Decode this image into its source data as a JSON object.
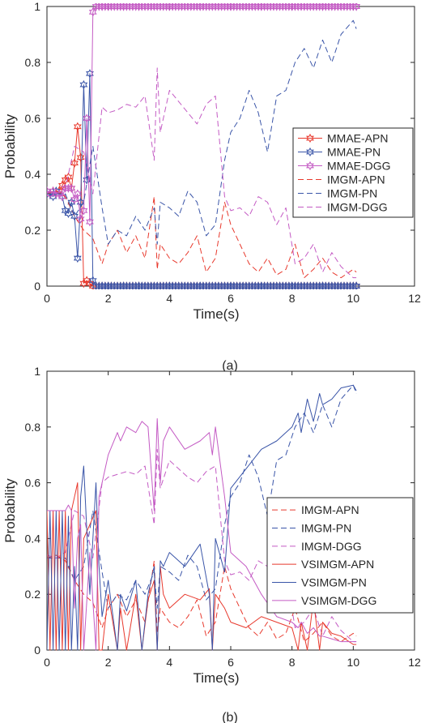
{
  "chart_data": [
    {
      "type": "line",
      "caption": "(a)",
      "xlabel": "Time(s)",
      "ylabel": "Probability",
      "xlim": [
        0,
        12
      ],
      "ylim": [
        0,
        1
      ],
      "xticks": [
        0,
        2,
        4,
        6,
        8,
        10,
        12
      ],
      "yticks": [
        0,
        0.2,
        0.4,
        0.6,
        0.8,
        1
      ],
      "grid": false,
      "legend_position": "right",
      "series": [
        {
          "name": "MMAE-APN",
          "color": "#e8392d",
          "style": "solid",
          "marker": "hexagram",
          "x": [
            0,
            0.1,
            0.2,
            0.3,
            0.4,
            0.5,
            0.6,
            0.7,
            0.8,
            0.9,
            1.0,
            1.1,
            1.2,
            1.3,
            1.4,
            1.5,
            1.6,
            1.8,
            2.0,
            2.5,
            3,
            4,
            5,
            6,
            7,
            8,
            9,
            10.1
          ],
          "y": [
            0.33,
            0.33,
            0.34,
            0.33,
            0.34,
            0.36,
            0.38,
            0.39,
            0.35,
            0.44,
            0.57,
            0.46,
            0.01,
            0.02,
            0.01,
            0.0,
            0.0,
            0,
            0,
            0,
            0,
            0,
            0,
            0,
            0,
            0,
            0,
            0
          ]
        },
        {
          "name": "MMAE-PN",
          "color": "#3a55a8",
          "style": "solid",
          "marker": "hexagram",
          "x": [
            0,
            0.1,
            0.2,
            0.3,
            0.4,
            0.5,
            0.6,
            0.7,
            0.8,
            0.9,
            1.0,
            1.1,
            1.2,
            1.3,
            1.4,
            1.5,
            1.6,
            1.8,
            2.0,
            2.5,
            3,
            4,
            5,
            6,
            7,
            8,
            9,
            10.1
          ],
          "y": [
            0.33,
            0.33,
            0.32,
            0.34,
            0.33,
            0.32,
            0.27,
            0.26,
            0.3,
            0.25,
            0.1,
            0.3,
            0.72,
            0.38,
            0.76,
            0.02,
            0.0,
            0,
            0,
            0,
            0,
            0,
            0,
            0,
            0,
            0,
            0,
            0
          ]
        },
        {
          "name": "MMAE-DGG",
          "color": "#c45bc4",
          "style": "solid",
          "marker": "hexagram",
          "x": [
            0,
            0.1,
            0.2,
            0.3,
            0.4,
            0.5,
            0.6,
            0.7,
            0.8,
            0.9,
            1.0,
            1.1,
            1.2,
            1.3,
            1.4,
            1.5,
            1.6,
            1.8,
            2.0,
            2.5,
            3,
            4,
            5,
            6,
            7,
            8,
            9,
            10.1
          ],
          "y": [
            0.34,
            0.33,
            0.34,
            0.33,
            0.33,
            0.32,
            0.35,
            0.35,
            0.35,
            0.31,
            0.33,
            0.24,
            0.27,
            0.6,
            0.23,
            0.98,
            1.0,
            1,
            1,
            1,
            1,
            1,
            1,
            1,
            1,
            1,
            1,
            1
          ]
        },
        {
          "name": "IMGM-APN",
          "color": "#e8392d",
          "style": "dashed",
          "marker": "none",
          "x": [
            0,
            0.3,
            0.6,
            0.9,
            1.2,
            1.5,
            1.8,
            2.0,
            2.3,
            2.6,
            2.9,
            3.2,
            3.5,
            3.6,
            3.7,
            4.0,
            4.3,
            4.6,
            4.9,
            5.2,
            5.5,
            5.8,
            6.0,
            6.3,
            6.6,
            6.9,
            7.2,
            7.5,
            7.8,
            8.1,
            8.4,
            8.7,
            9.0,
            9.3,
            9.6,
            10.0,
            10.1
          ],
          "y": [
            0.33,
            0.34,
            0.32,
            0.25,
            0.2,
            0.17,
            0.08,
            0.15,
            0.2,
            0.12,
            0.18,
            0.1,
            0.32,
            0.06,
            0.15,
            0.1,
            0.08,
            0.12,
            0.18,
            0.05,
            0.1,
            0.3,
            0.22,
            0.15,
            0.08,
            0.05,
            0.1,
            0.04,
            0.06,
            0.15,
            0.03,
            0.06,
            0.1,
            0.05,
            0.03,
            0.06,
            0.05
          ]
        },
        {
          "name": "IMGM-PN",
          "color": "#3a55a8",
          "style": "dashed",
          "marker": "none",
          "x": [
            0,
            0.3,
            0.6,
            0.9,
            1.2,
            1.5,
            1.8,
            2.0,
            2.3,
            2.6,
            2.9,
            3.2,
            3.5,
            3.6,
            3.7,
            4.0,
            4.3,
            4.6,
            4.9,
            5.2,
            5.5,
            5.8,
            6.0,
            6.3,
            6.6,
            6.9,
            7.2,
            7.5,
            7.8,
            8.1,
            8.4,
            8.7,
            9.0,
            9.3,
            9.6,
            10.0,
            10.1
          ],
          "y": [
            0.33,
            0.33,
            0.33,
            0.25,
            0.3,
            0.5,
            0.28,
            0.15,
            0.2,
            0.18,
            0.25,
            0.2,
            0.28,
            0.15,
            0.3,
            0.28,
            0.25,
            0.34,
            0.3,
            0.18,
            0.22,
            0.45,
            0.55,
            0.6,
            0.7,
            0.62,
            0.48,
            0.68,
            0.7,
            0.8,
            0.85,
            0.78,
            0.88,
            0.8,
            0.9,
            0.95,
            0.92
          ]
        },
        {
          "name": "IMGM-DGG",
          "color": "#c45bc4",
          "style": "dashed",
          "marker": "none",
          "x": [
            0,
            0.3,
            0.6,
            0.9,
            1.2,
            1.5,
            1.8,
            2.0,
            2.3,
            2.6,
            2.9,
            3.2,
            3.5,
            3.6,
            3.7,
            4.0,
            4.3,
            4.6,
            4.9,
            5.2,
            5.5,
            5.8,
            6.0,
            6.3,
            6.6,
            6.9,
            7.2,
            7.5,
            7.8,
            8.1,
            8.4,
            8.7,
            9.0,
            9.3,
            9.6,
            10.0,
            10.1
          ],
          "y": [
            0.34,
            0.33,
            0.35,
            0.5,
            0.48,
            0.33,
            0.64,
            0.62,
            0.63,
            0.65,
            0.64,
            0.68,
            0.45,
            0.78,
            0.55,
            0.7,
            0.66,
            0.62,
            0.58,
            0.65,
            0.68,
            0.32,
            0.27,
            0.28,
            0.25,
            0.32,
            0.3,
            0.22,
            0.28,
            0.08,
            0.1,
            0.15,
            0.05,
            0.12,
            0.07,
            0.03,
            0.03
          ]
        }
      ]
    },
    {
      "type": "line",
      "caption": "(b)",
      "xlabel": "Time(s)",
      "ylabel": "Probability",
      "xlim": [
        0,
        12
      ],
      "ylim": [
        0,
        1
      ],
      "xticks": [
        0,
        2,
        4,
        6,
        8,
        10,
        12
      ],
      "yticks": [
        0,
        0.2,
        0.4,
        0.6,
        0.8,
        1
      ],
      "grid": false,
      "legend_position": "right",
      "series": [
        {
          "name": "IMGM-APN",
          "color": "#e8392d",
          "style": "dashed",
          "x": [
            0,
            0.3,
            0.6,
            0.9,
            1.2,
            1.5,
            1.8,
            2.0,
            2.3,
            2.6,
            2.9,
            3.2,
            3.5,
            3.6,
            3.7,
            4.0,
            4.3,
            4.6,
            4.9,
            5.2,
            5.5,
            5.8,
            6.0,
            6.3,
            6.6,
            6.9,
            7.2,
            7.5,
            7.8,
            8.1,
            8.4,
            8.7,
            9.0,
            9.3,
            9.6,
            10.0,
            10.1
          ],
          "y": [
            0.33,
            0.34,
            0.32,
            0.25,
            0.2,
            0.17,
            0.08,
            0.15,
            0.2,
            0.12,
            0.18,
            0.1,
            0.32,
            0.06,
            0.15,
            0.1,
            0.08,
            0.12,
            0.18,
            0.05,
            0.1,
            0.3,
            0.22,
            0.15,
            0.08,
            0.05,
            0.1,
            0.04,
            0.06,
            0.15,
            0.03,
            0.06,
            0.1,
            0.05,
            0.03,
            0.06,
            0.05
          ]
        },
        {
          "name": "IMGM-PN",
          "color": "#3a55a8",
          "style": "dashed",
          "x": [
            0,
            0.3,
            0.6,
            0.9,
            1.2,
            1.5,
            1.8,
            2.0,
            2.3,
            2.6,
            2.9,
            3.2,
            3.5,
            3.6,
            3.7,
            4.0,
            4.3,
            4.6,
            4.9,
            5.2,
            5.5,
            5.8,
            6.0,
            6.3,
            6.6,
            6.9,
            7.2,
            7.5,
            7.8,
            8.1,
            8.4,
            8.7,
            9.0,
            9.3,
            9.6,
            10.0,
            10.1
          ],
          "y": [
            0.33,
            0.33,
            0.33,
            0.25,
            0.3,
            0.5,
            0.28,
            0.15,
            0.2,
            0.18,
            0.25,
            0.2,
            0.28,
            0.15,
            0.3,
            0.28,
            0.25,
            0.34,
            0.3,
            0.18,
            0.22,
            0.45,
            0.55,
            0.6,
            0.7,
            0.62,
            0.48,
            0.68,
            0.7,
            0.8,
            0.85,
            0.78,
            0.88,
            0.8,
            0.9,
            0.95,
            0.92
          ]
        },
        {
          "name": "IMGM-DGG",
          "color": "#c45bc4",
          "style": "dashed",
          "x": [
            0,
            0.3,
            0.6,
            0.9,
            1.2,
            1.5,
            1.8,
            2.0,
            2.3,
            2.6,
            2.9,
            3.2,
            3.5,
            3.6,
            3.7,
            4.0,
            4.3,
            4.6,
            4.9,
            5.2,
            5.5,
            5.8,
            6.0,
            6.3,
            6.6,
            6.9,
            7.2,
            7.5,
            7.8,
            8.1,
            8.4,
            8.7,
            9.0,
            9.3,
            9.6,
            10.0,
            10.1
          ],
          "y": [
            0.34,
            0.33,
            0.35,
            0.5,
            0.48,
            0.33,
            0.6,
            0.62,
            0.63,
            0.64,
            0.63,
            0.66,
            0.45,
            0.72,
            0.58,
            0.68,
            0.65,
            0.62,
            0.6,
            0.64,
            0.66,
            0.32,
            0.27,
            0.28,
            0.25,
            0.32,
            0.3,
            0.22,
            0.28,
            0.08,
            0.1,
            0.15,
            0.05,
            0.12,
            0.07,
            0.03,
            0.03
          ]
        },
        {
          "name": "VSIMGM-APN",
          "color": "#e8392d",
          "style": "solid",
          "x": [
            0,
            0.1,
            0.2,
            0.3,
            0.4,
            0.5,
            0.6,
            0.7,
            0.8,
            0.9,
            1.0,
            1.1,
            1.2,
            1.4,
            1.6,
            1.7,
            1.8,
            2.0,
            2.3,
            2.4,
            2.6,
            2.9,
            3.1,
            3.3,
            3.5,
            3.6,
            3.7,
            3.8,
            4.0,
            4.5,
            5.0,
            5.3,
            5.4,
            5.5,
            5.8,
            6.0,
            6.5,
            7.0,
            7.5,
            8.0,
            8.2,
            8.3,
            8.5,
            8.7,
            8.9,
            9.0,
            9.3,
            9.6,
            10.0,
            10.1
          ],
          "y": [
            0.5,
            0.0,
            0.5,
            0.0,
            0.5,
            0.0,
            0.5,
            0.0,
            0.5,
            0.55,
            0.6,
            0.0,
            0.4,
            0.45,
            0.5,
            0.0,
            0.0,
            0.2,
            0.0,
            0.15,
            0.0,
            0.2,
            0.0,
            0.18,
            0.25,
            0.0,
            0.3,
            0.2,
            0.15,
            0.2,
            0.18,
            0.22,
            0.0,
            0.2,
            0.15,
            0.1,
            0.08,
            0.12,
            0.1,
            0.08,
            0.0,
            0.1,
            0.0,
            0.18,
            0.0,
            0.1,
            0.06,
            0.05,
            0.02,
            0.02
          ]
        },
        {
          "name": "VSIMGM-PN",
          "color": "#3a55a8",
          "style": "solid",
          "x": [
            0,
            0.1,
            0.2,
            0.3,
            0.4,
            0.5,
            0.6,
            0.7,
            0.8,
            0.9,
            1.0,
            1.1,
            1.2,
            1.4,
            1.6,
            1.7,
            1.8,
            2.0,
            2.3,
            2.4,
            2.6,
            2.9,
            3.1,
            3.3,
            3.5,
            3.6,
            3.7,
            3.8,
            4.0,
            4.5,
            5.0,
            5.3,
            5.4,
            5.5,
            5.8,
            6.0,
            6.5,
            7.0,
            7.5,
            8.0,
            8.2,
            8.3,
            8.5,
            8.7,
            8.9,
            9.0,
            9.3,
            9.6,
            10.0,
            10.1
          ],
          "y": [
            0.0,
            0.5,
            0.0,
            0.5,
            0.0,
            0.5,
            0.0,
            0.48,
            0.0,
            0.3,
            0.0,
            0.55,
            0.66,
            0.2,
            0.6,
            0.3,
            0.12,
            0.25,
            0.0,
            0.2,
            0.14,
            0.25,
            0.0,
            0.2,
            0.3,
            0.0,
            0.32,
            0.3,
            0.35,
            0.3,
            0.38,
            0.2,
            0.0,
            0.4,
            0.28,
            0.58,
            0.65,
            0.72,
            0.75,
            0.8,
            0.85,
            0.78,
            0.9,
            0.82,
            0.92,
            0.88,
            0.9,
            0.94,
            0.95,
            0.93
          ]
        },
        {
          "name": "VSIMGM-DGG",
          "color": "#c45bc4",
          "style": "solid",
          "x": [
            0,
            0.1,
            0.2,
            0.3,
            0.4,
            0.5,
            0.6,
            0.7,
            0.8,
            0.9,
            1.0,
            1.1,
            1.2,
            1.4,
            1.6,
            1.7,
            1.8,
            2.0,
            2.3,
            2.4,
            2.6,
            2.9,
            3.1,
            3.3,
            3.5,
            3.6,
            3.7,
            3.8,
            4.0,
            4.5,
            5.0,
            5.3,
            5.4,
            5.5,
            5.8,
            6.0,
            6.5,
            7.0,
            7.5,
            8.0,
            8.2,
            8.3,
            8.5,
            8.7,
            8.9,
            9.0,
            9.3,
            9.6,
            10.0,
            10.1
          ],
          "y": [
            0.5,
            0.5,
            0.5,
            0.5,
            0.5,
            0.5,
            0.5,
            0.52,
            0.5,
            0.15,
            0.4,
            0.45,
            0.0,
            0.35,
            0.0,
            0.55,
            0.6,
            0.7,
            0.78,
            0.75,
            0.8,
            0.78,
            0.82,
            0.8,
            0.5,
            0.83,
            0.6,
            0.75,
            0.8,
            0.72,
            0.75,
            0.78,
            0.7,
            0.8,
            0.55,
            0.35,
            0.3,
            0.2,
            0.12,
            0.1,
            0.08,
            0.1,
            0.06,
            0.08,
            0.05,
            0.05,
            0.04,
            0.03,
            0.03,
            0.03
          ]
        }
      ]
    }
  ]
}
